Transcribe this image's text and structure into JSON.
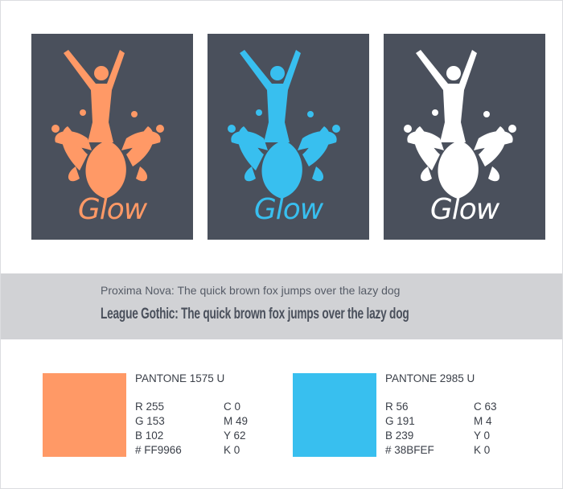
{
  "logos": [
    {
      "text": "Glow",
      "color": "#FF9966"
    },
    {
      "text": "Glow",
      "color": "#38BFEF"
    },
    {
      "text": "Glow",
      "color": "#FFFFFF"
    }
  ],
  "panel_color": "#4A505C",
  "typography": {
    "line1": "Proxima Nova: The quick brown fox jumps over the lazy dog",
    "line2": "League Gothic: The quick brown fox jumps over the lazy dog"
  },
  "colors": [
    {
      "name": "PANTONE 1575 U",
      "hex_value": "#FF9966",
      "rows": [
        [
          "R 255",
          "C 0"
        ],
        [
          "G 153",
          "M 49"
        ],
        [
          "B 102",
          "Y 62"
        ],
        [
          "# FF9966",
          "K 0"
        ]
      ]
    },
    {
      "name": "PANTONE 2985 U",
      "hex_value": "#38BFEF",
      "rows": [
        [
          "R 56",
          "C 63"
        ],
        [
          "G 191",
          "M 4"
        ],
        [
          "B 239",
          "Y 0"
        ],
        [
          "# 38BFEF",
          "K 0"
        ]
      ]
    }
  ]
}
